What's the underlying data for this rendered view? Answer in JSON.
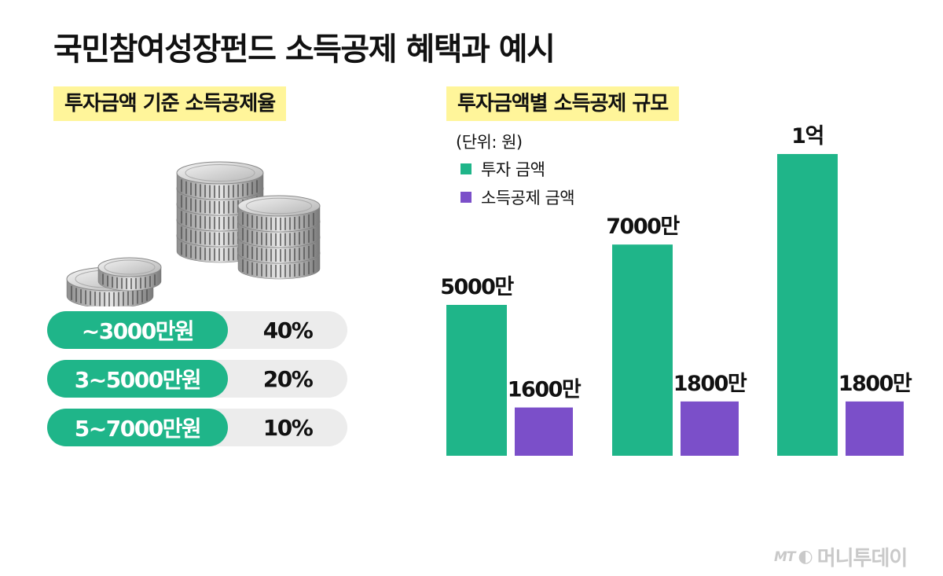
{
  "title": "국민참여성장펀드 소득공제 혜택과 예시",
  "left_section": {
    "label": "투자금액 기준 소득공제율",
    "rows": [
      {
        "range": "~3000만원",
        "rate": "40%"
      },
      {
        "range": "3~5000만원",
        "rate": "20%"
      },
      {
        "range": "5~7000만원",
        "rate": "10%"
      }
    ]
  },
  "right_section": {
    "label": "투자금액별 소득공제 규모"
  },
  "chart_data": {
    "type": "bar",
    "unit_label": "(단위: 원)",
    "categories": [
      "",
      "",
      ""
    ],
    "series": [
      {
        "name": "투자 금액",
        "values": [
          50000000,
          70000000,
          100000000
        ],
        "labels": [
          "5000만",
          "7000만",
          "1억"
        ],
        "color": "#1fb589"
      },
      {
        "name": "소득공제 금액",
        "values": [
          16000000,
          18000000,
          18000000
        ],
        "labels": [
          "1600만",
          "1800만",
          "1800만"
        ],
        "color": "#7b4fc9"
      }
    ],
    "ylim": [
      0,
      100000000
    ],
    "grid": false,
    "legend": "top-left"
  },
  "brand": {
    "prefix": "MT",
    "name": "머니투데이"
  },
  "icons": {
    "coins": "coins-illustration",
    "brand_logo": "brand-logo-icon"
  }
}
